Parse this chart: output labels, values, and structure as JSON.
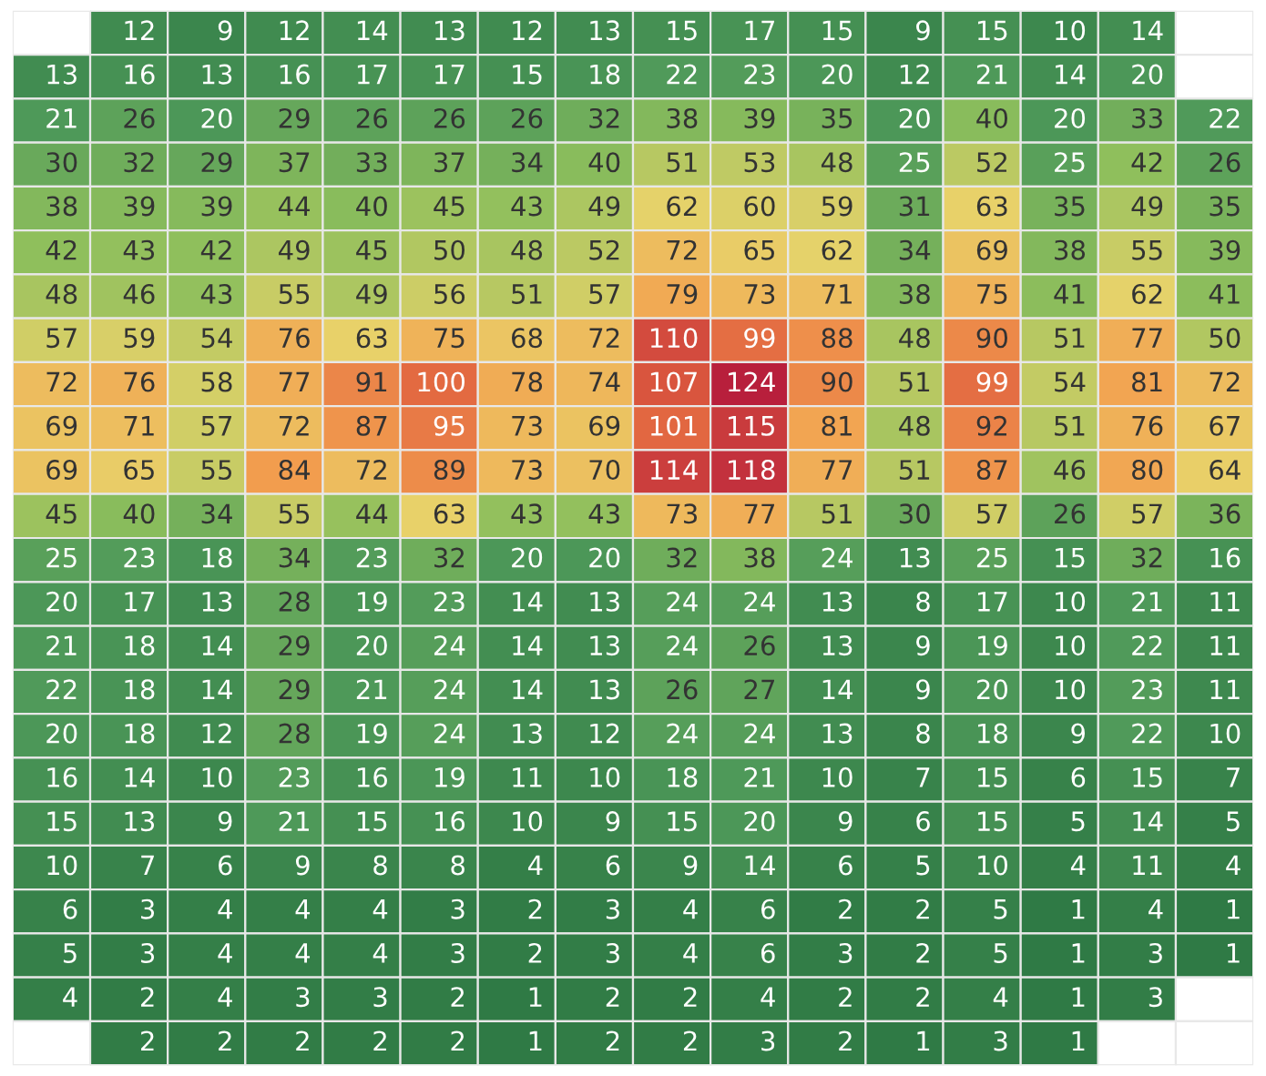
{
  "chart_data": {
    "type": "heatmap",
    "data_labels": true,
    "categories": [
      null,
      null,
      null,
      null,
      null,
      null,
      null,
      null,
      null,
      null,
      null,
      null,
      null,
      null,
      null,
      null
    ],
    "y_categories": [
      null,
      null,
      null,
      null,
      null,
      null,
      null,
      null,
      null,
      null,
      null,
      null,
      null,
      null,
      null,
      null,
      null,
      null,
      null,
      null,
      null,
      null,
      null,
      null
    ],
    "cells": [
      [
        null,
        12,
        9,
        12,
        14,
        13,
        12,
        13,
        15,
        17,
        15,
        9,
        15,
        10,
        14,
        null
      ],
      [
        13,
        16,
        13,
        16,
        17,
        17,
        15,
        18,
        22,
        23,
        20,
        12,
        21,
        14,
        20,
        null
      ],
      [
        21,
        26,
        20,
        29,
        26,
        26,
        26,
        32,
        38,
        39,
        35,
        20,
        40,
        20,
        33,
        22
      ],
      [
        30,
        32,
        29,
        37,
        33,
        37,
        34,
        40,
        51,
        53,
        48,
        25,
        52,
        25,
        42,
        26
      ],
      [
        38,
        39,
        39,
        44,
        40,
        45,
        43,
        49,
        62,
        60,
        59,
        31,
        63,
        35,
        49,
        35
      ],
      [
        42,
        43,
        42,
        49,
        45,
        50,
        48,
        52,
        72,
        65,
        62,
        34,
        69,
        38,
        55,
        39
      ],
      [
        48,
        46,
        43,
        55,
        49,
        56,
        51,
        57,
        79,
        73,
        71,
        38,
        75,
        41,
        62,
        41
      ],
      [
        57,
        59,
        54,
        76,
        63,
        75,
        68,
        72,
        110,
        99,
        88,
        48,
        90,
        51,
        77,
        50
      ],
      [
        72,
        76,
        58,
        77,
        91,
        100,
        78,
        74,
        107,
        124,
        90,
        51,
        99,
        54,
        81,
        72
      ],
      [
        69,
        71,
        57,
        72,
        87,
        95,
        73,
        69,
        101,
        115,
        81,
        48,
        92,
        51,
        76,
        67
      ],
      [
        69,
        65,
        55,
        84,
        72,
        89,
        73,
        70,
        114,
        118,
        77,
        51,
        87,
        46,
        80,
        64
      ],
      [
        45,
        40,
        34,
        55,
        44,
        63,
        43,
        43,
        73,
        77,
        51,
        30,
        57,
        26,
        57,
        36
      ],
      [
        25,
        23,
        18,
        34,
        23,
        32,
        20,
        20,
        32,
        38,
        24,
        13,
        25,
        15,
        32,
        16
      ],
      [
        20,
        17,
        13,
        28,
        19,
        23,
        14,
        13,
        24,
        24,
        13,
        8,
        17,
        10,
        21,
        11
      ],
      [
        21,
        18,
        14,
        29,
        20,
        24,
        14,
        13,
        24,
        26,
        13,
        9,
        19,
        10,
        22,
        11
      ],
      [
        22,
        18,
        14,
        29,
        21,
        24,
        14,
        13,
        26,
        27,
        14,
        9,
        20,
        10,
        23,
        11
      ],
      [
        20,
        18,
        12,
        28,
        19,
        24,
        13,
        12,
        24,
        24,
        13,
        8,
        18,
        9,
        22,
        10
      ],
      [
        16,
        14,
        10,
        23,
        16,
        19,
        11,
        10,
        18,
        21,
        10,
        7,
        15,
        6,
        15,
        7
      ],
      [
        15,
        13,
        9,
        21,
        15,
        16,
        10,
        9,
        15,
        20,
        9,
        6,
        15,
        5,
        14,
        5
      ],
      [
        10,
        7,
        6,
        9,
        8,
        8,
        4,
        6,
        9,
        14,
        6,
        5,
        10,
        4,
        11,
        4
      ],
      [
        6,
        3,
        4,
        4,
        4,
        3,
        2,
        3,
        4,
        6,
        2,
        2,
        5,
        1,
        4,
        1
      ],
      [
        5,
        3,
        4,
        4,
        4,
        3,
        2,
        3,
        4,
        6,
        3,
        2,
        5,
        1,
        3,
        1
      ],
      [
        4,
        2,
        4,
        3,
        3,
        2,
        1,
        2,
        2,
        4,
        2,
        2,
        4,
        1,
        3,
        null
      ],
      [
        null,
        2,
        2,
        2,
        2,
        2,
        1,
        2,
        2,
        3,
        2,
        1,
        3,
        1,
        null,
        null
      ]
    ]
  }
}
